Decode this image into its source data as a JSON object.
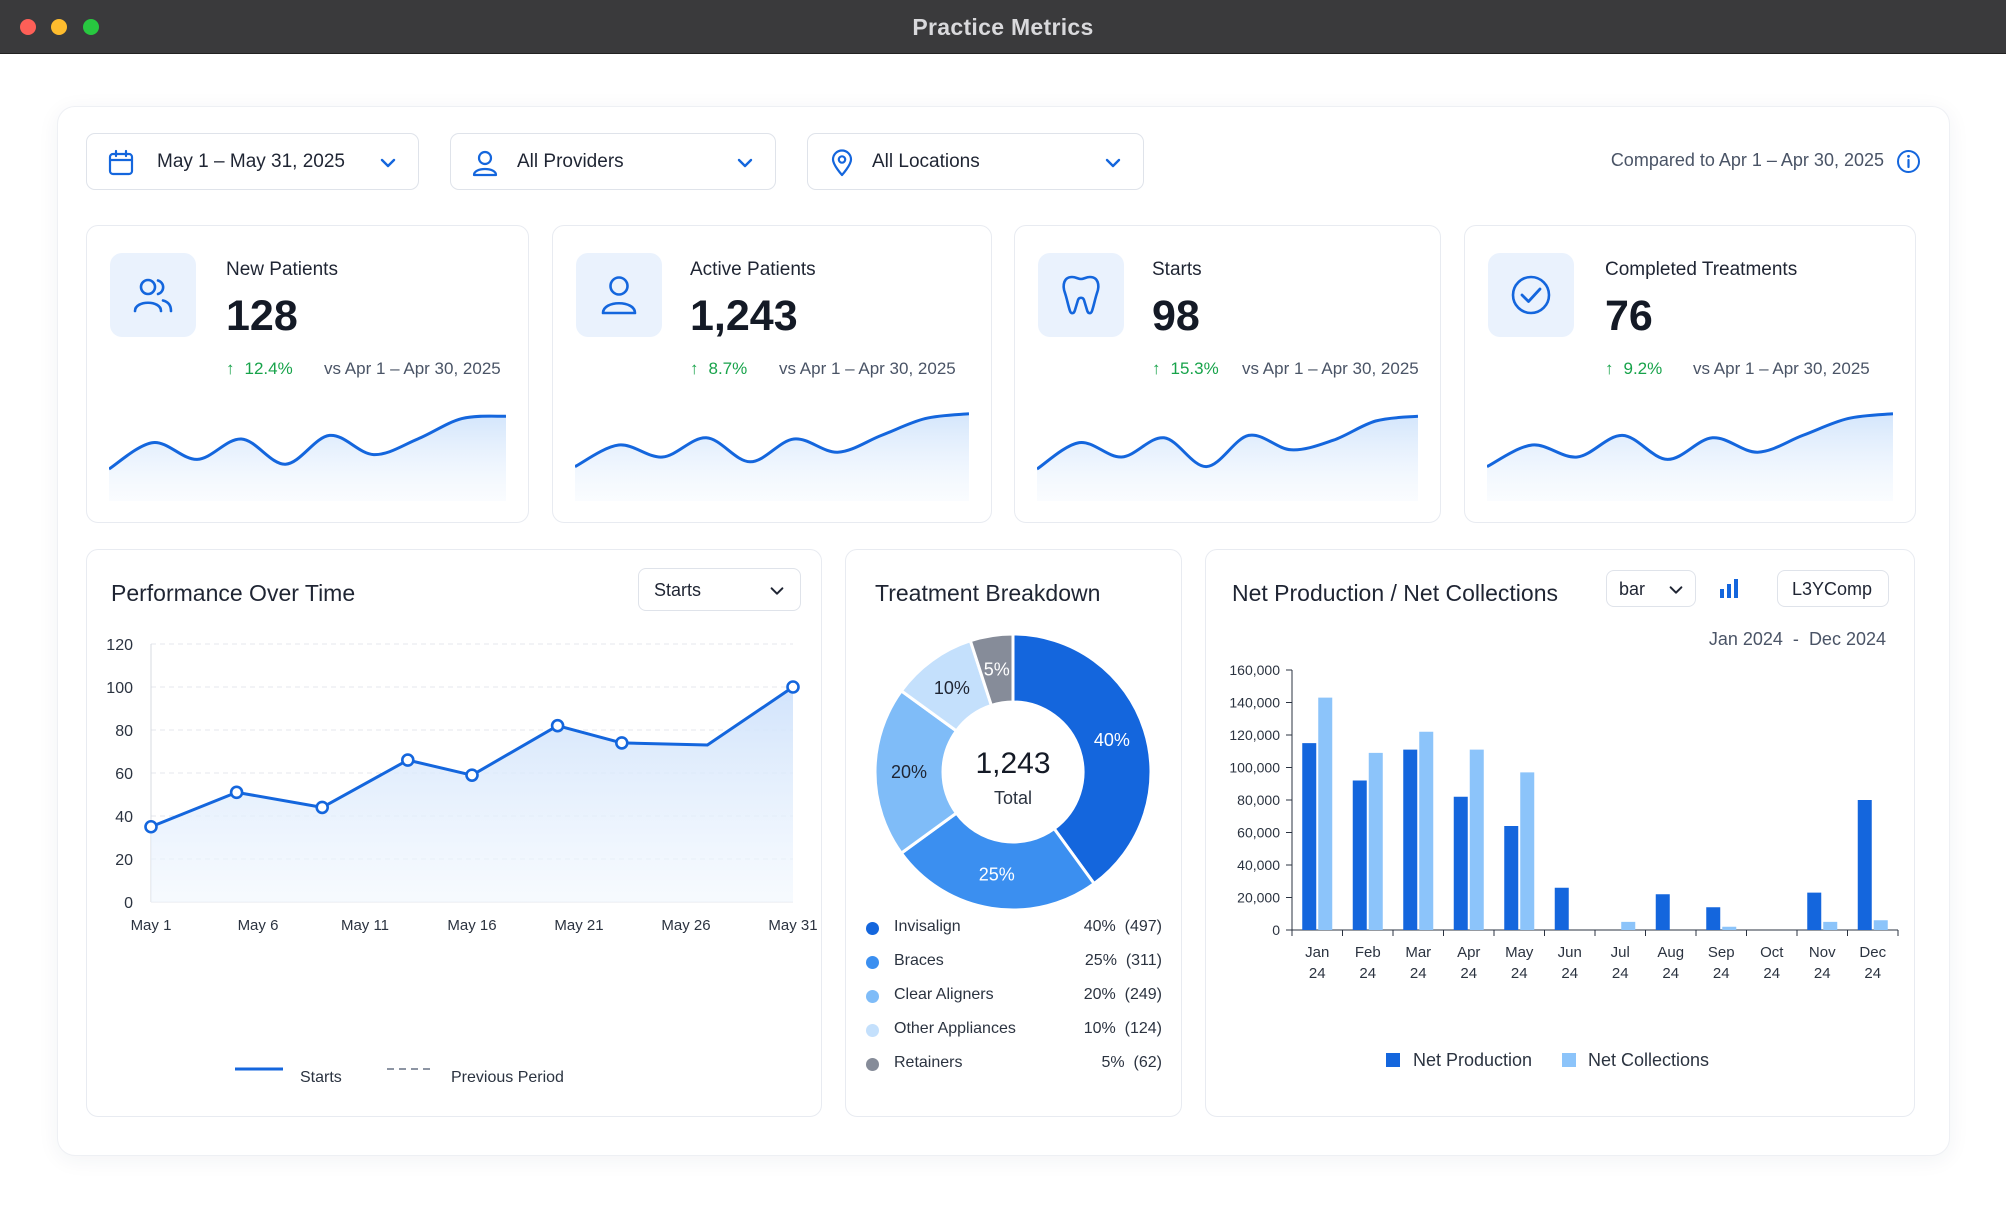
{
  "window": {
    "title": "Practice Metrics"
  },
  "filters": {
    "date": {
      "label": "May 1 – May 31, 2025",
      "icon": "calendar-icon"
    },
    "providers": {
      "label": "All Providers",
      "icon": "user-icon"
    },
    "locations": {
      "label": "All Locations",
      "icon": "location-pin-icon"
    },
    "compare_text": "Compared to Apr 1 – Apr 30, 2025"
  },
  "kpis": [
    {
      "label": "New Patients",
      "value": "128",
      "change": "12.4%",
      "vs": "vs Apr 1 – Apr 30, 2025",
      "icon": "users-icon",
      "trend": [
        20,
        42,
        28,
        45,
        24,
        48,
        32,
        45,
        62,
        64
      ]
    },
    {
      "label": "Active Patients",
      "value": "1,243",
      "change": "8.7%",
      "vs": "vs Apr 1 – Apr 30, 2025",
      "icon": "user-icon",
      "trend": [
        22,
        40,
        30,
        46,
        26,
        45,
        34,
        48,
        62,
        66
      ]
    },
    {
      "label": "Starts",
      "value": "98",
      "change": "15.3%",
      "vs": "vs Apr 1 – Apr 30, 2025",
      "icon": "tooth-icon",
      "trend": [
        20,
        42,
        30,
        46,
        22,
        48,
        36,
        44,
        60,
        64
      ]
    },
    {
      "label": "Completed Treatments",
      "value": "76",
      "change": "9.2%",
      "vs": "vs Apr 1 – Apr 30, 2025",
      "icon": "check-circle-icon",
      "trend": [
        22,
        40,
        30,
        48,
        28,
        46,
        34,
        48,
        62,
        66
      ]
    }
  ],
  "performance": {
    "title": "Performance Over Time",
    "metric_select": "Starts",
    "legend": {
      "current": "Starts",
      "previous": "Previous Period"
    }
  },
  "breakdown": {
    "title": "Treatment Breakdown",
    "center_value": "1,243",
    "center_label": "Total",
    "items": [
      {
        "name": "Invisalign",
        "pct": "40%",
        "count": "(497)",
        "color": "#1466dd"
      },
      {
        "name": "Braces",
        "pct": "25%",
        "count": "(311)",
        "color": "#3b8ff0"
      },
      {
        "name": "Clear Aligners",
        "pct": "20%",
        "count": "(249)",
        "color": "#7fbcf8"
      },
      {
        "name": "Other Appliances",
        "pct": "10%",
        "count": "(124)",
        "color": "#c4e0fc"
      },
      {
        "name": "Retainers",
        "pct": "5%",
        "count": "(62)",
        "color": "#868c99"
      }
    ]
  },
  "netprod": {
    "title": "Net Production / Net Collections",
    "chart_type_select": "bar",
    "chart_icon": "bar-chart-icon",
    "comp_button": "L3YComp",
    "date_from": "Jan 2024",
    "date_sep": "-",
    "date_to": "Dec 2024",
    "legend": {
      "a": "Net Production",
      "b": "Net Collections"
    }
  },
  "chart_data": [
    {
      "type": "line",
      "title": "Performance Over Time",
      "x": [
        "May 1",
        "May 6",
        "May 11",
        "May 16",
        "May 21",
        "May 26",
        "May 31"
      ],
      "series": [
        {
          "name": "Starts",
          "x": [
            1,
            5,
            9,
            13,
            16,
            20,
            23,
            27,
            31
          ],
          "values": [
            35,
            51,
            44,
            66,
            59,
            82,
            74,
            73,
            100
          ]
        }
      ],
      "xlabel": "",
      "ylabel": "",
      "ylim": [
        0,
        120
      ],
      "yticks": [
        0,
        20,
        40,
        60,
        80,
        100,
        120
      ],
      "grid": true,
      "legend": "bottom"
    },
    {
      "type": "pie",
      "title": "Treatment Breakdown",
      "labels": [
        "Invisalign",
        "Braces",
        "Clear Aligners",
        "Other Appliances",
        "Retainers"
      ],
      "values": [
        40,
        25,
        20,
        10,
        5
      ],
      "slice_labels": [
        "40%",
        "25%",
        "20%",
        "10%",
        "5%"
      ],
      "legend": "bottom"
    },
    {
      "type": "bar",
      "title": "Net Production / Net Collections",
      "categories": [
        [
          "Jan",
          "24"
        ],
        [
          "Feb",
          "24"
        ],
        [
          "Mar",
          "24"
        ],
        [
          "Apr",
          "24"
        ],
        [
          "May",
          "24"
        ],
        [
          "Jun",
          "24"
        ],
        [
          "Jul",
          "24"
        ],
        [
          "Aug",
          "24"
        ],
        [
          "Sep",
          "24"
        ],
        [
          "Oct",
          "24"
        ],
        [
          "Nov",
          "24"
        ],
        [
          "Dec",
          "24"
        ]
      ],
      "series": [
        {
          "name": "Net Production",
          "values": [
            115000,
            92000,
            111000,
            82000,
            64000,
            26000,
            0,
            22000,
            14000,
            0,
            23000,
            80000
          ],
          "color": "#1466dd"
        },
        {
          "name": "Net Collections",
          "values": [
            143000,
            109000,
            122000,
            111000,
            97000,
            0,
            5000,
            0,
            2000,
            0,
            5000,
            6000
          ],
          "color": "#8cc4fa"
        }
      ],
      "ylim": [
        0,
        160000
      ],
      "yticks": [
        "0",
        "20,000",
        "40,000",
        "60,000",
        "80,000",
        "100,000",
        "120,000",
        "140,000",
        "160,000"
      ],
      "legend": "bottom"
    }
  ]
}
